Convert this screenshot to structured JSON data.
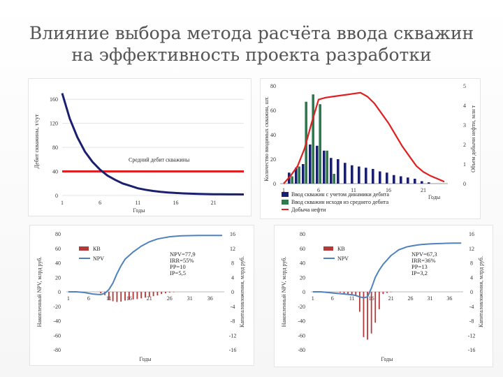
{
  "slide": {
    "title_line1": "Влияние выбора метода расчёта ввода скважин",
    "title_line2": "на эффективность проекта разработки"
  },
  "colors": {
    "navy": "#1a1f6e",
    "red": "#e02020",
    "green": "#2e7a4f",
    "blue_line": "#4f82bd",
    "dark_red": "#b23a3a"
  },
  "chart_data": [
    {
      "id": "rate",
      "type": "line",
      "ylabel": "Дебит скважины, т/сут",
      "xlabel": "Годы",
      "x_ticks": [
        "1",
        "6",
        "11",
        "16",
        "21"
      ],
      "y_ticks": [
        "0",
        "40",
        "80",
        "120",
        "160"
      ],
      "xlim": [
        1,
        25
      ],
      "ylim": [
        0,
        180
      ],
      "decline": {
        "x": [
          1,
          2,
          3,
          4,
          5,
          6,
          7,
          8,
          9,
          10,
          11,
          12,
          13,
          14,
          15,
          16,
          17,
          18,
          19,
          20,
          21,
          22,
          23,
          24,
          25
        ],
        "y": [
          170,
          128,
          97,
          73,
          56,
          43,
          33,
          26,
          20,
          16,
          12,
          9.5,
          7.5,
          6,
          5,
          4.2,
          3.5,
          3,
          2.6,
          2.3,
          2.1,
          2,
          1.9,
          1.8,
          1.7
        ]
      },
      "average": {
        "y": 40,
        "label": "Средний дебит скважины"
      }
    },
    {
      "id": "wells",
      "type": "bar",
      "ylabel_left": "Количество вводимых скважин, шт.",
      "ylabel_right": "Объем добычи нефти, млн т",
      "xlabel": "Годы",
      "x_ticks": [
        "1",
        "6",
        "11",
        "16",
        "21"
      ],
      "y_ticks_left": [
        "0",
        "20",
        "40",
        "60",
        "80"
      ],
      "y_ticks_right": [
        "0",
        "1",
        "2",
        "3",
        "4",
        "5"
      ],
      "ylim_left": [
        0,
        80
      ],
      "ylim_right": [
        0,
        5
      ],
      "years": [
        1,
        2,
        3,
        4,
        5,
        6,
        7,
        8,
        9,
        10,
        11,
        12,
        13,
        14,
        15,
        16,
        17,
        18,
        19,
        20,
        21,
        22,
        23,
        24
      ],
      "series": [
        {
          "name": "Ввод скважин с учетом динамики дебита",
          "values": [
            0,
            9,
            13,
            16,
            32,
            31,
            27,
            21,
            20,
            17,
            15,
            14,
            13,
            12,
            10,
            9,
            7,
            6,
            5,
            4,
            2,
            1,
            0,
            0
          ]
        },
        {
          "name": "Ввод скважин исходя из среднего дебита",
          "values": [
            0,
            6,
            14,
            67,
            73,
            65,
            27,
            8,
            0,
            0,
            0,
            0,
            0,
            0,
            0,
            0,
            0,
            0,
            0,
            0,
            0,
            0,
            0,
            0
          ]
        }
      ],
      "production": {
        "name": "Добыча нефти",
        "values": [
          0,
          0.4,
          0.9,
          1.8,
          3.1,
          4.3,
          4.4,
          4.45,
          4.5,
          4.55,
          4.6,
          4.65,
          4.45,
          4.1,
          3.6,
          3.1,
          2.5,
          1.9,
          1.4,
          0.9,
          0.6,
          0.4,
          0.25,
          0.1
        ]
      }
    },
    {
      "id": "econ_a",
      "type": "bar+line",
      "ylabel_left": "Накопленный NPV, млрд руб.",
      "ylabel_right": "Капиталовложения, млрд руб.",
      "xlabel": "Годы",
      "x_ticks": [
        "1",
        "6",
        "11",
        "16",
        "21",
        "26",
        "31",
        "36"
      ],
      "y_ticks_left": [
        "-80",
        "-60",
        "-40",
        "-20",
        "0",
        "20",
        "40",
        "60",
        "80"
      ],
      "y_ticks_right": [
        "-16",
        "-12",
        "-8",
        "-4",
        "0",
        "4",
        "8",
        "12",
        "16"
      ],
      "ylim_left": [
        -80,
        80
      ],
      "ylim_right": [
        -16,
        16
      ],
      "legend": [
        "КВ",
        "NPV"
      ],
      "annotations": [
        "NPV=77,9",
        "IRR=55%",
        "PP=10",
        "IP=5,5"
      ],
      "kv": [
        0,
        0,
        0,
        0,
        0,
        0,
        0,
        0,
        -0.4,
        -0.9,
        -2.3,
        -2.6,
        -2.8,
        -2.7,
        -2.4,
        -2.2,
        -2.1,
        -2.0,
        -1.8,
        -1.6,
        -1.4,
        -1.2,
        -1.0,
        -0.6,
        -0.4,
        -0.2,
        -0.1,
        0,
        0,
        0,
        0,
        0,
        0,
        0,
        0,
        0,
        0,
        0,
        0
      ],
      "npv": [
        0,
        0,
        0,
        -0.5,
        -1,
        -2,
        -3,
        -3.5,
        -3.8,
        -2,
        3,
        12,
        25,
        36,
        45,
        50,
        55,
        59,
        63,
        66,
        69,
        71,
        73,
        74,
        75,
        76,
        76.5,
        77,
        77.3,
        77.5,
        77.6,
        77.7,
        77.8,
        77.8,
        77.9,
        77.9,
        77.9,
        77.9,
        77.9
      ]
    },
    {
      "id": "econ_b",
      "type": "bar+line",
      "ylabel_left": "Накопленный NPV, млрд руб.",
      "ylabel_right": "Капиталовложения, млрд руб.",
      "xlabel": "Годы",
      "x_ticks": [
        "1",
        "6",
        "11",
        "16",
        "21",
        "26",
        "31",
        "36"
      ],
      "y_ticks_left": [
        "-80",
        "-60",
        "-40",
        "-20",
        "0",
        "20",
        "40",
        "60",
        "80"
      ],
      "y_ticks_right": [
        "-16",
        "-12",
        "-8",
        "-4",
        "0",
        "4",
        "8",
        "12",
        "16"
      ],
      "ylim_left": [
        -80,
        80
      ],
      "ylim_right": [
        -16,
        16
      ],
      "legend": [
        "КВ",
        "NPV"
      ],
      "annotations": [
        "NPV=67,3",
        "IRR=36%",
        "PP=13",
        "IP=3,2"
      ],
      "kv": [
        0,
        0,
        0,
        0,
        0,
        0,
        0,
        -0.2,
        -0.5,
        -0.7,
        -1.0,
        -1.2,
        -5.5,
        -12.5,
        -13.2,
        -11.5,
        -8.5,
        -4.8,
        -0.6,
        -0.3,
        -0.1,
        0,
        0,
        0,
        0,
        0,
        0,
        0,
        0,
        0,
        0,
        0,
        0,
        0,
        0,
        0,
        0,
        0,
        0
      ],
      "npv": [
        0,
        0,
        0,
        -0.5,
        -1,
        -1.5,
        -2,
        -2.5,
        -3,
        -3.5,
        -4,
        -5,
        -7,
        -8,
        -7,
        5,
        20,
        30,
        38,
        44,
        50,
        54,
        58,
        60,
        62,
        63,
        64,
        64.8,
        65.4,
        65.8,
        66.1,
        66.4,
        66.6,
        66.8,
        67.0,
        67.1,
        67.2,
        67.3,
        67.3
      ]
    }
  ]
}
